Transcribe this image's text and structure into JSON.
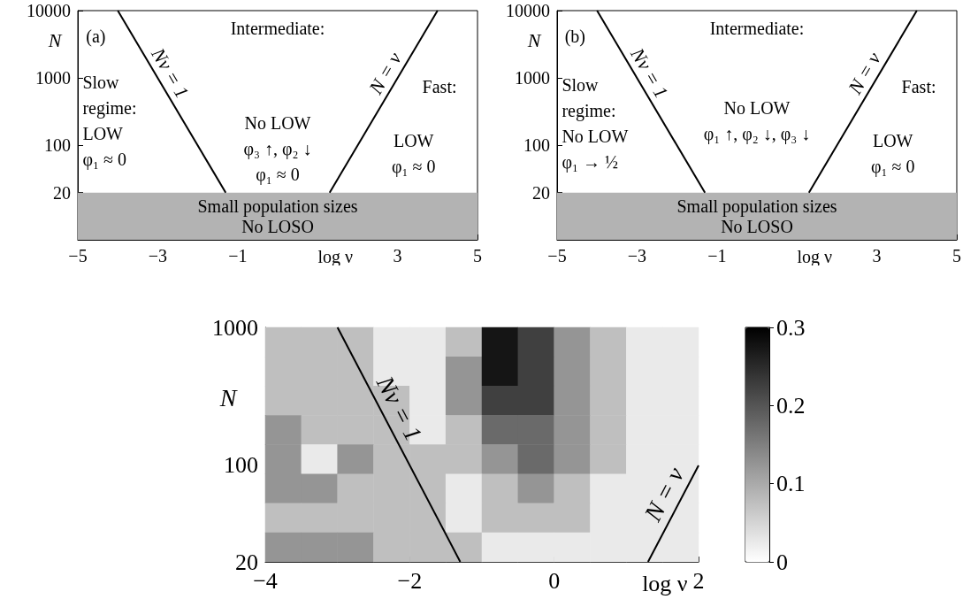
{
  "chart_data": [
    {
      "type": "line",
      "xlabel": "log ν",
      "ylabel": "N",
      "xlim": [
        -5,
        5
      ],
      "xticks": [
        -5,
        -3,
        -1,
        3,
        5
      ],
      "ylim": [
        4,
        10000
      ],
      "yticks": [
        20,
        100,
        1000,
        10000
      ],
      "log": "y",
      "marker": "none",
      "series": [
        {
          "name": "Nν = 1",
          "color": "#000000",
          "x": [
            -4,
            -1.3
          ],
          "values": [
            10000,
            20
          ]
        },
        {
          "name": "N = ν",
          "color": "#000000",
          "x": [
            1.3,
            4
          ],
          "values": [
            20,
            10000
          ]
        }
      ],
      "bands": [
        {
          "axis": "y",
          "from": 4,
          "to": 20,
          "label": "Small population sizes\nNo LOSO",
          "color": "#b3b3b3"
        }
      ],
      "annotations": [
        "(a)",
        "Intermediate:",
        "No LOW\nφ₃ ↑, φ₂ ↓\nφ₁ ≈ 0",
        "Slow\nregime:\nLOW\nφ₁ ≈ 0",
        "Fast:",
        "LOW\nφ₁ ≈ 0"
      ]
    },
    {
      "type": "line",
      "xlabel": "log ν",
      "ylabel": "N",
      "xlim": [
        -5,
        5
      ],
      "xticks": [
        -5,
        -3,
        -1,
        3,
        5
      ],
      "ylim": [
        4,
        10000
      ],
      "yticks": [
        20,
        100,
        1000,
        10000
      ],
      "log": "y",
      "marker": "none",
      "series": [
        {
          "name": "Nν = 1",
          "color": "#000000",
          "x": [
            -4,
            -1.3
          ],
          "values": [
            10000,
            20
          ]
        },
        {
          "name": "N = ν",
          "color": "#000000",
          "x": [
            1.3,
            4
          ],
          "values": [
            20,
            10000
          ]
        }
      ],
      "bands": [
        {
          "axis": "y",
          "from": 4,
          "to": 20,
          "label": "Small population sizes\nNo LOSO",
          "color": "#b3b3b3"
        }
      ],
      "annotations": [
        "(b)",
        "Intermediate:",
        "No LOW\nφ₁ ↑, φ₂ ↓, φ₃ ↓",
        "Slow\nregime:\nNo LOW\nφ₁ → ½",
        "Fast:",
        "LOW\nφ₁ ≈ 0"
      ]
    },
    {
      "type": "heatmap",
      "xlabel": "log ν",
      "ylabel": "N",
      "xlim": [
        -4,
        2
      ],
      "xticks": [
        -4,
        -2,
        0,
        2
      ],
      "ylim": [
        20,
        1000
      ],
      "yticks": [
        20,
        100,
        1000
      ],
      "log": "y",
      "marker": "none",
      "cells": [
        [
          0.075,
          0.075,
          0.075,
          0.025,
          0.025,
          0.075,
          0.275,
          0.225,
          0.125,
          0.075,
          0.025,
          0.025
        ],
        [
          0.075,
          0.075,
          0.075,
          0.025,
          0.025,
          0.125,
          0.275,
          0.225,
          0.125,
          0.075,
          0.025,
          0.025
        ],
        [
          0.075,
          0.075,
          0.075,
          0.075,
          0.025,
          0.125,
          0.225,
          0.225,
          0.125,
          0.075,
          0.025,
          0.025
        ],
        [
          0.125,
          0.075,
          0.075,
          0.075,
          0.025,
          0.075,
          0.175,
          0.175,
          0.125,
          0.075,
          0.025,
          0.025
        ],
        [
          0.125,
          0.025,
          0.125,
          0.075,
          0.075,
          0.075,
          0.125,
          0.175,
          0.125,
          0.075,
          0.025,
          0.025
        ],
        [
          0.125,
          0.125,
          0.075,
          0.075,
          0.075,
          0.025,
          0.075,
          0.125,
          0.075,
          0.025,
          0.025,
          0.025
        ],
        [
          0.075,
          0.075,
          0.075,
          0.075,
          0.075,
          0.025,
          0.075,
          0.075,
          0.075,
          0.025,
          0.025,
          0.025
        ],
        [
          0.125,
          0.125,
          0.125,
          0.075,
          0.075,
          0.075,
          0.025,
          0.025,
          0.025,
          0.025,
          0.025,
          0.025
        ]
      ],
      "clim": [
        0,
        0.3
      ],
      "cticks": [
        0,
        0.1,
        0.2,
        0.3
      ],
      "series": [
        {
          "type": "line",
          "name": "Nν = 1",
          "color": "#000000",
          "x": [
            -3,
            -1.3
          ],
          "values": [
            1000,
            20
          ]
        },
        {
          "type": "line",
          "name": "N = ν",
          "color": "#000000",
          "x": [
            1.3,
            2
          ],
          "values": [
            20,
            100
          ]
        }
      ]
    }
  ]
}
